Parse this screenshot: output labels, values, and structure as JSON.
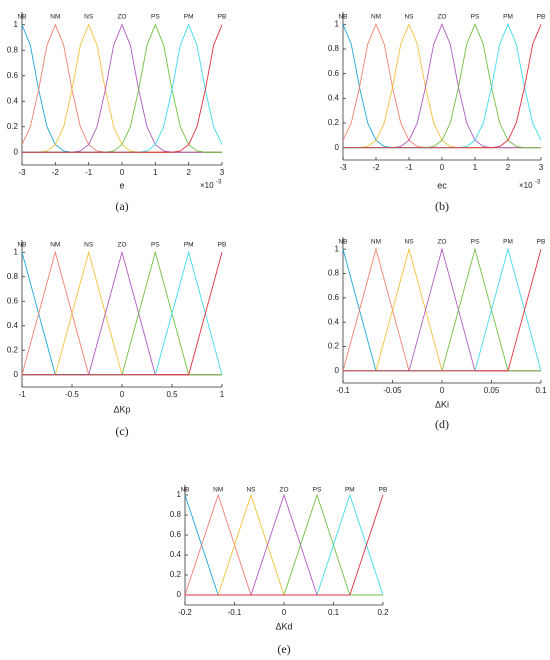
{
  "chart_data": [
    {
      "type": "line",
      "x_label": "e",
      "x_scale_base": "×10",
      "x_scale_exponent": "-3",
      "panel_label": "(a)",
      "xlim": [
        -3,
        3
      ],
      "xticks": [
        -3,
        -2,
        -1,
        0,
        1,
        2,
        3
      ],
      "ylim": [
        -0.1,
        1.1
      ],
      "yticks": [
        0,
        0.2,
        0.4,
        0.6,
        0.8,
        1
      ],
      "grid": false,
      "x": [
        -3,
        -2.75,
        -2.5,
        -2.25,
        -2,
        -1.75,
        -1.5,
        -1.25,
        -1,
        -0.75,
        -0.5,
        -0.25,
        0,
        0.25,
        0.5,
        0.75,
        1,
        1.25,
        1.5,
        1.75,
        2,
        2.25,
        2.5,
        2.75,
        3
      ],
      "series": [
        {
          "name": "NB",
          "color": "#1ea7d8",
          "values": [
            1,
            0.84,
            0.49,
            0.2,
            0.06,
            0.01,
            0,
            0,
            0,
            0,
            0,
            0,
            0,
            0,
            0,
            0,
            0,
            0,
            0,
            0,
            0,
            0,
            0,
            0,
            0
          ]
        },
        {
          "name": "NM",
          "color": "#f0826e",
          "values": [
            0.06,
            0.2,
            0.49,
            0.84,
            1,
            0.84,
            0.49,
            0.2,
            0.06,
            0.01,
            0,
            0,
            0,
            0,
            0,
            0,
            0,
            0,
            0,
            0,
            0,
            0,
            0,
            0,
            0
          ]
        },
        {
          "name": "NS",
          "color": "#f2c23c",
          "values": [
            0,
            0,
            0,
            0.01,
            0.06,
            0.2,
            0.49,
            0.84,
            1,
            0.84,
            0.49,
            0.2,
            0.06,
            0.01,
            0,
            0,
            0,
            0,
            0,
            0,
            0,
            0,
            0,
            0,
            0
          ]
        },
        {
          "name": "ZO",
          "color": "#b05cc0",
          "values": [
            0,
            0,
            0,
            0,
            0,
            0,
            0,
            0.01,
            0.06,
            0.2,
            0.49,
            0.84,
            1,
            0.84,
            0.49,
            0.2,
            0.06,
            0.01,
            0,
            0,
            0,
            0,
            0,
            0,
            0
          ]
        },
        {
          "name": "PS",
          "color": "#72c043",
          "values": [
            0,
            0,
            0,
            0,
            0,
            0,
            0,
            0,
            0,
            0,
            0,
            0.01,
            0.06,
            0.2,
            0.49,
            0.84,
            1,
            0.84,
            0.49,
            0.2,
            0.06,
            0.01,
            0,
            0,
            0
          ]
        },
        {
          "name": "PM",
          "color": "#3fdcef",
          "values": [
            0,
            0,
            0,
            0,
            0,
            0,
            0,
            0,
            0,
            0,
            0,
            0,
            0,
            0,
            0,
            0.01,
            0.06,
            0.2,
            0.49,
            0.84,
            1,
            0.84,
            0.49,
            0.2,
            0.06
          ]
        },
        {
          "name": "PB",
          "color": "#e0303c",
          "values": [
            0,
            0,
            0,
            0,
            0,
            0,
            0,
            0,
            0,
            0,
            0,
            0,
            0,
            0,
            0,
            0,
            0,
            0,
            0,
            0.01,
            0.06,
            0.2,
            0.49,
            0.84,
            1
          ]
        }
      ]
    },
    {
      "type": "line",
      "x_label": "ec",
      "x_scale_base": "×10",
      "x_scale_exponent": "-3",
      "panel_label": "(b)",
      "xlim": [
        -3,
        3
      ],
      "xticks": [
        -3,
        -2,
        -1,
        0,
        1,
        2,
        3
      ],
      "ylim": [
        -0.1,
        1.1
      ],
      "yticks": [
        0,
        0.2,
        0.4,
        0.6,
        0.8,
        1
      ],
      "grid": false,
      "x": [
        -3,
        -2.75,
        -2.5,
        -2.25,
        -2,
        -1.75,
        -1.5,
        -1.25,
        -1,
        -0.75,
        -0.5,
        -0.25,
        0,
        0.25,
        0.5,
        0.75,
        1,
        1.25,
        1.5,
        1.75,
        2,
        2.25,
        2.5,
        2.75,
        3
      ],
      "series": [
        {
          "name": "NB",
          "color": "#1ea7d8",
          "values": [
            1,
            0.84,
            0.49,
            0.2,
            0.06,
            0.01,
            0,
            0,
            0,
            0,
            0,
            0,
            0,
            0,
            0,
            0,
            0,
            0,
            0,
            0,
            0,
            0,
            0,
            0,
            0
          ]
        },
        {
          "name": "NM",
          "color": "#f0826e",
          "values": [
            0.06,
            0.2,
            0.49,
            0.84,
            1,
            0.84,
            0.49,
            0.2,
            0.06,
            0.01,
            0,
            0,
            0,
            0,
            0,
            0,
            0,
            0,
            0,
            0,
            0,
            0,
            0,
            0,
            0
          ]
        },
        {
          "name": "NS",
          "color": "#f2c23c",
          "values": [
            0,
            0,
            0,
            0.01,
            0.06,
            0.2,
            0.49,
            0.84,
            1,
            0.84,
            0.49,
            0.2,
            0.06,
            0.01,
            0,
            0,
            0,
            0,
            0,
            0,
            0,
            0,
            0,
            0,
            0
          ]
        },
        {
          "name": "ZO",
          "color": "#b05cc0",
          "values": [
            0,
            0,
            0,
            0,
            0,
            0,
            0,
            0.01,
            0.06,
            0.2,
            0.49,
            0.84,
            1,
            0.84,
            0.49,
            0.2,
            0.06,
            0.01,
            0,
            0,
            0,
            0,
            0,
            0,
            0
          ]
        },
        {
          "name": "PS",
          "color": "#72c043",
          "values": [
            0,
            0,
            0,
            0,
            0,
            0,
            0,
            0,
            0,
            0,
            0,
            0.01,
            0.06,
            0.2,
            0.49,
            0.84,
            1,
            0.84,
            0.49,
            0.2,
            0.06,
            0.01,
            0,
            0,
            0
          ]
        },
        {
          "name": "PM",
          "color": "#3fdcef",
          "values": [
            0,
            0,
            0,
            0,
            0,
            0,
            0,
            0,
            0,
            0,
            0,
            0,
            0,
            0,
            0,
            0.01,
            0.06,
            0.2,
            0.49,
            0.84,
            1,
            0.84,
            0.49,
            0.2,
            0.06
          ]
        },
        {
          "name": "PB",
          "color": "#e0303c",
          "values": [
            0,
            0,
            0,
            0,
            0,
            0,
            0,
            0,
            0,
            0,
            0,
            0,
            0,
            0,
            0,
            0,
            0,
            0,
            0,
            0.01,
            0.06,
            0.2,
            0.49,
            0.84,
            1
          ]
        }
      ]
    },
    {
      "type": "line",
      "x_label": "ΔKp",
      "panel_label": "(c)",
      "xlim": [
        -1,
        1
      ],
      "xticks": [
        -1,
        -0.5,
        0,
        0.5,
        1
      ],
      "ylim": [
        -0.1,
        1.1
      ],
      "yticks": [
        0,
        0.2,
        0.4,
        0.6,
        0.8,
        1
      ],
      "grid": false,
      "x": [
        -1,
        -0.667,
        -0.333,
        0,
        0.333,
        0.667,
        1
      ],
      "series": [
        {
          "name": "NB",
          "color": "#1ea7d8",
          "values": [
            1,
            0,
            0,
            0,
            0,
            0,
            0
          ]
        },
        {
          "name": "NM",
          "color": "#f0826e",
          "values": [
            0,
            1,
            0,
            0,
            0,
            0,
            0
          ]
        },
        {
          "name": "NS",
          "color": "#f2c23c",
          "values": [
            0,
            0,
            1,
            0,
            0,
            0,
            0
          ]
        },
        {
          "name": "ZO",
          "color": "#b05cc0",
          "values": [
            0,
            0,
            0,
            1,
            0,
            0,
            0
          ]
        },
        {
          "name": "PS",
          "color": "#72c043",
          "values": [
            0,
            0,
            0,
            0,
            1,
            0,
            0
          ]
        },
        {
          "name": "PM",
          "color": "#3fdcef",
          "values": [
            0,
            0,
            0,
            0,
            0,
            1,
            0
          ]
        },
        {
          "name": "PB",
          "color": "#e0303c",
          "values": [
            0,
            0,
            0,
            0,
            0,
            0,
            1
          ]
        }
      ]
    },
    {
      "type": "line",
      "x_label": "ΔKi",
      "panel_label": "(d)",
      "xlim": [
        -0.1,
        0.1
      ],
      "xticks": [
        -0.1,
        -0.05,
        0,
        0.05,
        0.1
      ],
      "ylim": [
        -0.1,
        1.1
      ],
      "yticks": [
        0,
        0.2,
        0.4,
        0.6,
        0.8,
        1
      ],
      "grid": false,
      "x": [
        -0.1,
        -0.0667,
        -0.0333,
        0,
        0.0333,
        0.0667,
        0.1
      ],
      "series": [
        {
          "name": "NB",
          "color": "#1ea7d8",
          "values": [
            1,
            0,
            0,
            0,
            0,
            0,
            0
          ]
        },
        {
          "name": "NM",
          "color": "#f0826e",
          "values": [
            0,
            1,
            0,
            0,
            0,
            0,
            0
          ]
        },
        {
          "name": "NS",
          "color": "#f2c23c",
          "values": [
            0,
            0,
            1,
            0,
            0,
            0,
            0
          ]
        },
        {
          "name": "ZO",
          "color": "#b05cc0",
          "values": [
            0,
            0,
            0,
            1,
            0,
            0,
            0
          ]
        },
        {
          "name": "PS",
          "color": "#72c043",
          "values": [
            0,
            0,
            0,
            0,
            1,
            0,
            0
          ]
        },
        {
          "name": "PM",
          "color": "#3fdcef",
          "values": [
            0,
            0,
            0,
            0,
            0,
            1,
            0
          ]
        },
        {
          "name": "PB",
          "color": "#e0303c",
          "values": [
            0,
            0,
            0,
            0,
            0,
            0,
            1
          ]
        }
      ]
    },
    {
      "type": "line",
      "x_label": "ΔKd",
      "panel_label": "(e)",
      "xlim": [
        -0.2,
        0.2
      ],
      "xticks": [
        -0.2,
        -0.1,
        0,
        0.1,
        0.2
      ],
      "ylim": [
        -0.1,
        1.1
      ],
      "yticks": [
        0,
        0.2,
        0.4,
        0.6,
        0.8,
        1
      ],
      "grid": false,
      "x": [
        -0.2,
        -0.133,
        -0.0667,
        0,
        0.0667,
        0.133,
        0.2
      ],
      "series": [
        {
          "name": "NB",
          "color": "#1ea7d8",
          "values": [
            1,
            0,
            0,
            0,
            0,
            0,
            0
          ]
        },
        {
          "name": "NM",
          "color": "#f0826e",
          "values": [
            0,
            1,
            0,
            0,
            0,
            0,
            0
          ]
        },
        {
          "name": "NS",
          "color": "#f2c23c",
          "values": [
            0,
            0,
            1,
            0,
            0,
            0,
            0
          ]
        },
        {
          "name": "ZO",
          "color": "#b05cc0",
          "values": [
            0,
            0,
            0,
            1,
            0,
            0,
            0
          ]
        },
        {
          "name": "PS",
          "color": "#72c043",
          "values": [
            0,
            0,
            0,
            0,
            1,
            0,
            0
          ]
        },
        {
          "name": "PM",
          "color": "#3fdcef",
          "values": [
            0,
            0,
            0,
            0,
            0,
            1,
            0
          ]
        },
        {
          "name": "PB",
          "color": "#e0303c",
          "values": [
            0,
            0,
            0,
            0,
            0,
            0,
            1
          ]
        }
      ]
    }
  ]
}
